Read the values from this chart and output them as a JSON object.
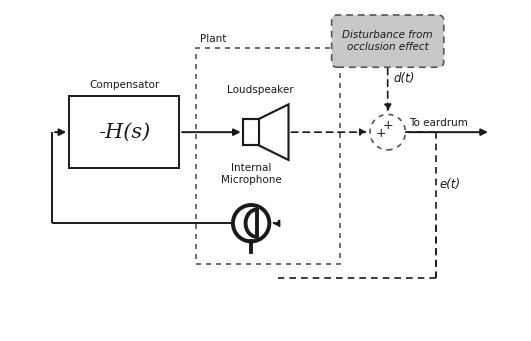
{
  "line_color": "#1a1a1a",
  "dash_color": "#555555",
  "disturbance_bg": "#c8c8c8",
  "compensator_label": "Compensator",
  "compensator_text": "-H(s)",
  "plant_label": "Plant",
  "loudspeaker_label": "Loudspeaker",
  "microphone_label": "Internal\nMicrophone",
  "disturbance_label": "Disturbance from\nocclusion effect",
  "eardrum_label": "To eardrum",
  "dt_label": "d(t)",
  "et_label": "e(t)",
  "fig_width": 5.31,
  "fig_height": 3.41,
  "dpi": 100
}
